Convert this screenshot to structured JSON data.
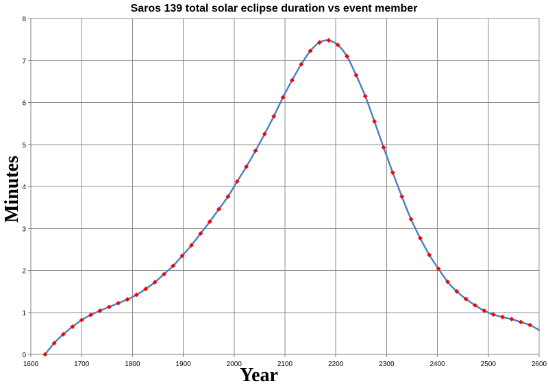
{
  "chart_data": {
    "type": "line",
    "title": "Saros 139 total solar eclipse duration vs event member",
    "xlabel": "Year",
    "ylabel": "Minutes",
    "xlim": [
      1600,
      2600
    ],
    "ylim": [
      0,
      8
    ],
    "xticks": [
      "1600",
      "1700",
      "1800",
      "1900",
      "2000",
      "2100",
      "2200",
      "2300",
      "2400",
      "2500",
      "2600"
    ],
    "yticks": [
      "0",
      "1",
      "2",
      "3",
      "4",
      "5",
      "6",
      "7",
      "8"
    ],
    "grid": true,
    "legend": "none",
    "colors": {
      "line": "#4f81bd",
      "marker": "#ff0000",
      "grid": "#8c8c8c"
    },
    "series": [
      {
        "x": [
          1628,
          1646,
          1664,
          1682,
          1700,
          1718,
          1736,
          1754,
          1772,
          1790,
          1808,
          1826,
          1844,
          1862,
          1880,
          1898,
          1916,
          1934,
          1952,
          1970,
          1988,
          2006,
          2024,
          2042,
          2060,
          2078,
          2096,
          2114,
          2132,
          2150,
          2168,
          2186,
          2204,
          2222,
          2240,
          2258,
          2276,
          2294,
          2312,
          2330,
          2348,
          2366,
          2384,
          2402,
          2420,
          2438,
          2456,
          2474,
          2492,
          2510,
          2528,
          2546,
          2564,
          2582,
          2600
        ],
        "values": [
          0.0,
          0.27,
          0.48,
          0.66,
          0.82,
          0.94,
          1.04,
          1.13,
          1.22,
          1.31,
          1.42,
          1.56,
          1.72,
          1.91,
          2.11,
          2.35,
          2.6,
          2.88,
          3.16,
          3.46,
          3.76,
          4.12,
          4.47,
          4.85,
          5.25,
          5.67,
          6.12,
          6.53,
          6.91,
          7.23,
          7.43,
          7.48,
          7.37,
          7.1,
          6.65,
          6.15,
          5.55,
          4.93,
          4.33,
          3.76,
          3.22,
          2.77,
          2.37,
          2.04,
          1.73,
          1.5,
          1.32,
          1.17,
          1.04,
          0.95,
          0.89,
          0.84,
          0.77,
          0.7,
          0.58
        ],
        "markers": [
          true,
          true,
          true,
          true,
          true,
          true,
          true,
          true,
          true,
          true,
          true,
          true,
          true,
          true,
          true,
          true,
          true,
          true,
          true,
          true,
          true,
          true,
          true,
          true,
          true,
          true,
          true,
          true,
          true,
          true,
          true,
          true,
          true,
          true,
          true,
          true,
          true,
          true,
          true,
          true,
          true,
          true,
          true,
          true,
          true,
          true,
          true,
          true,
          true,
          true,
          true,
          true,
          true,
          true,
          false
        ]
      }
    ]
  }
}
